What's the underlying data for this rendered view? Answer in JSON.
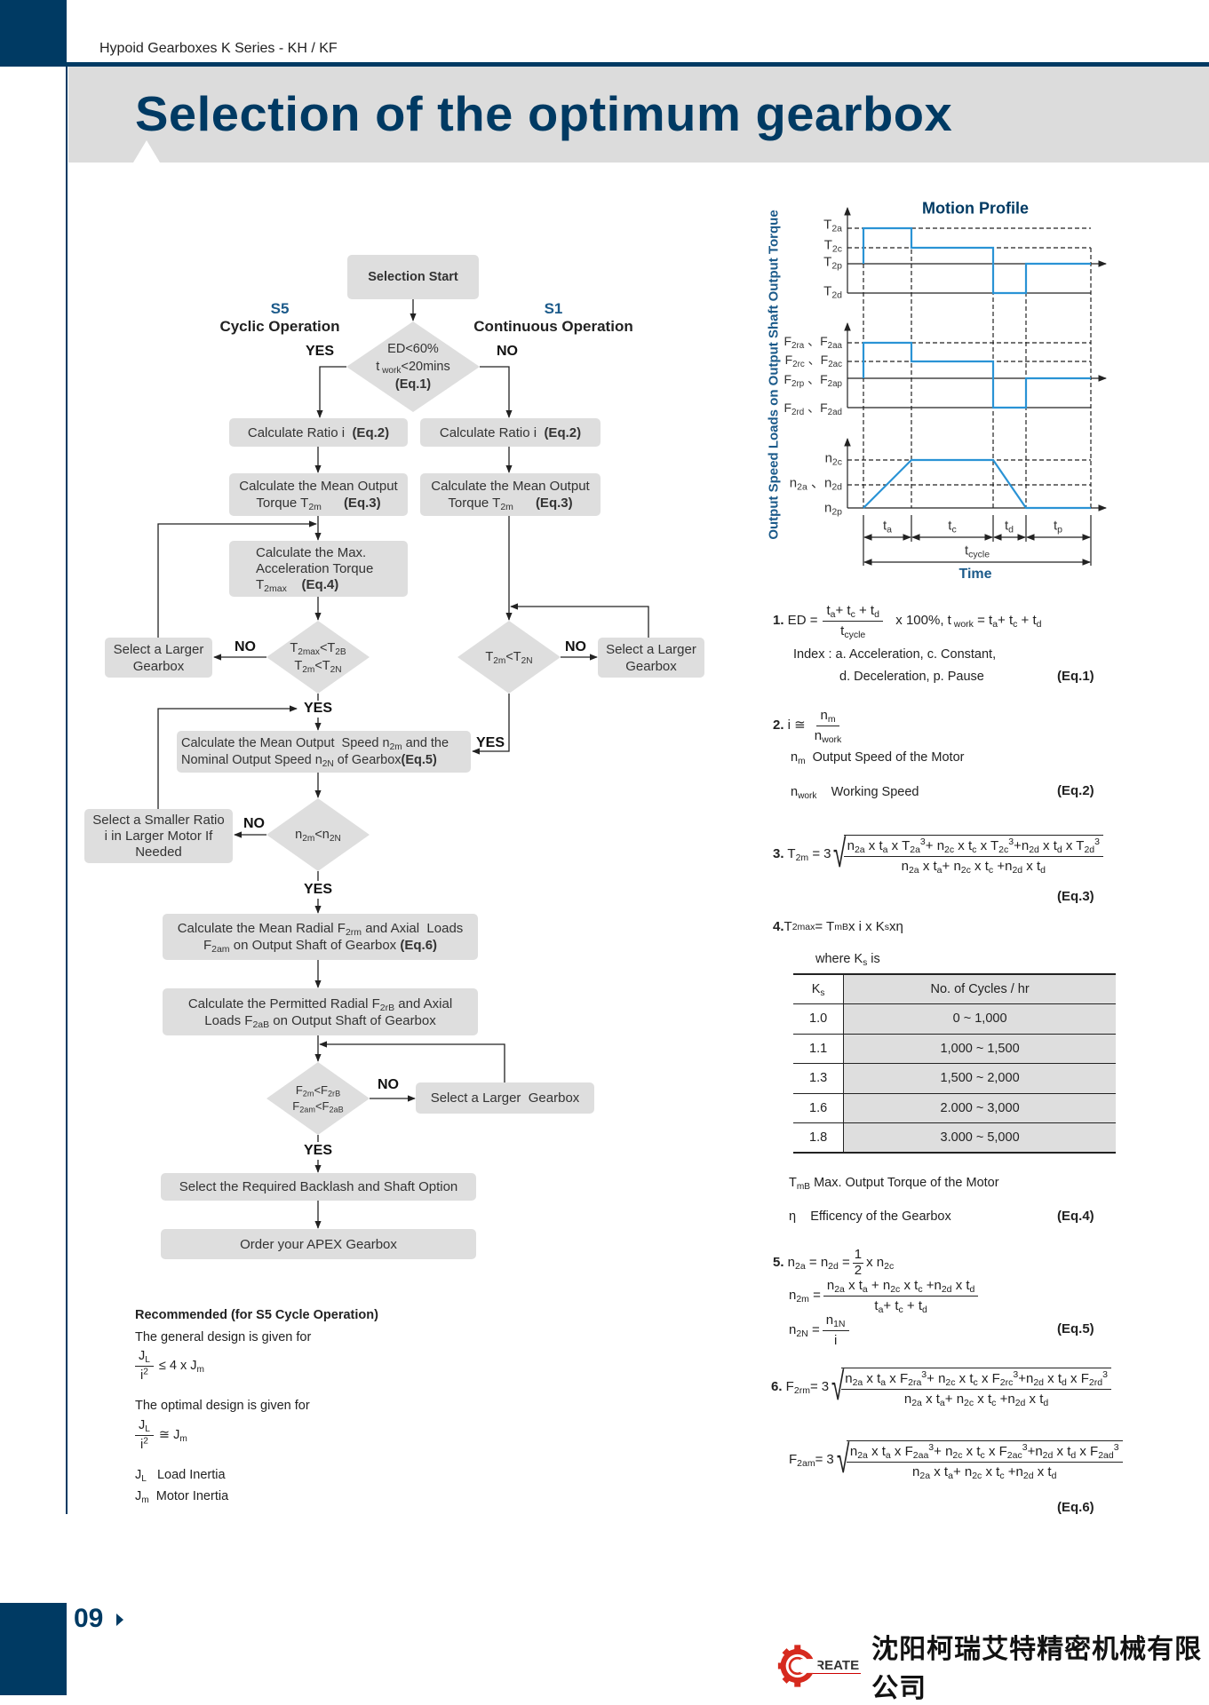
{
  "header": {
    "series": "Hypoid Gearboxes K Series - KH / KF",
    "title": "Selection of the optimum gearbox"
  },
  "footer": {
    "page_number": "09",
    "company_logo_text": "CREATE",
    "company_name": "沈阳柯瑞艾特精密机械有限公司",
    "logo_color": "#d62a1e"
  },
  "colors": {
    "brand_navy": "#003a63",
    "profile_line": "#2a93d5",
    "box_fill": "#dedede"
  },
  "flow": {
    "start": "Selection Start",
    "s5": {
      "code": "S5",
      "label": "Cyclic Operation"
    },
    "s1": {
      "code": "S1",
      "label": "Continuous Operation"
    },
    "yes": "YES",
    "no": "NO",
    "d1": [
      "ED<60%",
      "t_{ work}<20mins",
      "*{(Eq.1)}"
    ],
    "ratio": "Calculate Ratio i &nbsp;*{(Eq.2)}",
    "mean_torque": [
      "Calculate the Mean Output",
      "Torque T_{2m} &nbsp;&nbsp;&nbsp;&nbsp;&nbsp;*{(Eq.3)}"
    ],
    "max_accel": [
      "Calculate the Max.",
      "Acceleration Torque",
      "T_{2max} &nbsp;&nbsp;&nbsp;*{(Eq.4)}"
    ],
    "d2": [
      "T_{2max}<T_{2B}",
      "T_{2m}<T_{2N}"
    ],
    "select_larger": [
      "Select a Larger",
      "Gearbox"
    ],
    "d_right": "T_{2m}<T_{2N}",
    "mean_speed": [
      "Calculate the Mean Output &nbsp;Speed n_{2m} and the",
      "Nominal Output Speed n_{2N} of Gearbox*{(Eq.5)}"
    ],
    "d3": "n_{2m}<n_{2N}",
    "select_smaller": [
      "Select a Smaller Ratio",
      "i in Larger Motor If",
      "Needed"
    ],
    "mean_loads": [
      "Calculate the Mean Radial F_{2rm} and Axial &nbsp;Loads",
      "F_{2am} on Output Shaft of Gearbox *{(Eq.6)}"
    ],
    "permitted_loads": [
      "Calculate the Permitted Radial F_{2rB} and Axial",
      "Loads F_{2aB} on Output Shaft of Gearbox"
    ],
    "d4": [
      "F_{2m}<F_{2rB}",
      "F_{2am}<F_{2aB}"
    ],
    "select_larger_2": "Select a Larger &nbsp;Gearbox",
    "backlash": "Select the Required Backlash and Shaft Option",
    "order": "Order your APEX Gearbox"
  },
  "recommended": {
    "heading": "Recommended (for S5 Cycle Operation)",
    "general": "The general design is given for",
    "general_formula": {
      "num": "J_{L}",
      "den": "i^{2}",
      "rhs": "≤ 4 x J_{m}"
    },
    "optimal": "The optimal design is given for",
    "optimal_formula": {
      "num": "J_{L}",
      "den": "i^{2}",
      "rhs": "≅ J_{m}"
    },
    "legend": [
      {
        "sym": "J_{L}",
        "text": "Load Inertia"
      },
      {
        "sym": "J_{m}",
        "text": "Motor Inertia"
      }
    ]
  },
  "motion_profile": {
    "title": "Motion Profile",
    "y_axis_label": "Output Speed Loads on Output Shaft Output Torque",
    "x_axis_label": "Time",
    "torque_levels": [
      "T_{2a}",
      "T_{2c}",
      "T_{2p}",
      "T_{2d}"
    ],
    "force_levels": [
      "F_{2ra} 、F_{2aa}",
      "F_{2rc} 、F_{2ac}",
      "F_{2rp} 、F_{2ap}",
      "F_{2rd} 、F_{2ad}"
    ],
    "speed_levels": [
      "n_{2c}",
      "n_{2a} 、n_{2d}",
      "n_{2p}"
    ],
    "phases": [
      "t_{a}",
      "t_{c}",
      "t_{d}",
      "t_{p}"
    ],
    "cycle": "t_{cycle}"
  },
  "equations": {
    "eq1": {
      "num": "*{1.} ED =",
      "frac_num": "t_{a}+ t_{c} + t_{d}",
      "frac_den": "t_{cycle}",
      "rest": "x 100%, t_{ work} = t_{a}+ t_{c} + t_{d}",
      "index1": "Index : a. Acceleration, c. Constant,",
      "index2": "d. Deceleration, p. Pause",
      "tag": "(Eq.1)"
    },
    "eq2": {
      "lhs": "*{2.} i ≅",
      "frac_num": "n_{m}",
      "frac_den": "n_{work}",
      "def1_sym": "n_{m}",
      "def1": "Output Speed of the Motor",
      "def2_sym": "n_{work}",
      "def2": "Working Speed",
      "tag": "(Eq.2)"
    },
    "eq3": {
      "lhs": "*{3.} T_{2m} =",
      "root_index": "3",
      "num": "n_{2a} x t_{a} x T_{2a}^{3}+ n_{2c} x t_{c} x T_{2c}^{3}+n_{2d} x t_{d} x T_{2d}^{3}",
      "den": "n_{2a} x t_{a}+ n_{2c} x t_{c} +n_{2d} x t_{d}",
      "tag": "(Eq.3)"
    },
    "eq4": {
      "lhs": "*{4.} T_{2max} = T_{mB} x i x K_{s} xη",
      "where": "where K_{s} is",
      "table": {
        "headers": [
          "K_{s}",
          "No. of Cycles / hr"
        ],
        "rows": [
          [
            "1.0",
            "0 ~ 1,000"
          ],
          [
            "1.1",
            "1,000 ~ 1,500"
          ],
          [
            "1.3",
            "1,500 ~ 2,000"
          ],
          [
            "1.6",
            "2.000 ~ 3,000"
          ],
          [
            "1.8",
            "3.000 ~ 5,000"
          ]
        ]
      },
      "def1": "T_{mB} Max. Output Torque of the Motor",
      "def2_sym": "η",
      "def2": "Efficency of the Gearbox",
      "tag": "(Eq.4)"
    },
    "eq5": {
      "line1": "*{5.} n_{2a} = n_{2d} =",
      "half_num": "1",
      "half_den": "2",
      "line1_rest": "x n_{2c}",
      "n2m_lhs": "n_{2m} =",
      "n2m_num": "n_{2a} x t_{a} + n_{2c} x t_{c} +n_{2d} x t_{d}",
      "n2m_den": "t_{a}+ t_{c} + t_{d}",
      "n2N_lhs": "n_{2N} =",
      "n2N_num": "n_{1N}",
      "n2N_den": "i",
      "tag": "(Eq.5)"
    },
    "eq6": {
      "f2rm_lhs": "*{6.} F_{2rm}=",
      "root_index": "3",
      "f2rm_num": "n_{2a} x t_{a} x F_{2ra}^{3}+ n_{2c} x t_{c} x F_{2rc}^{3}+n_{2d} x t_{d} x F_{2rd}^{3}",
      "f2rm_den": "n_{2a} x t_{a}+ n_{2c} x t_{c} +n_{2d} x t_{d}",
      "f2am_lhs": "F_{2am}=",
      "f2am_num": "n_{2a} x t_{a} x F_{2aa}^{3}+ n_{2c} x t_{c} x F_{2ac}^{3}+n_{2d} x t_{d} x F_{2ad}^{3}",
      "f2am_den": "n_{2a} x t_{a}+ n_{2c} x t_{c} +n_{2d} x t_{d}",
      "tag": "(Eq.6)"
    }
  }
}
